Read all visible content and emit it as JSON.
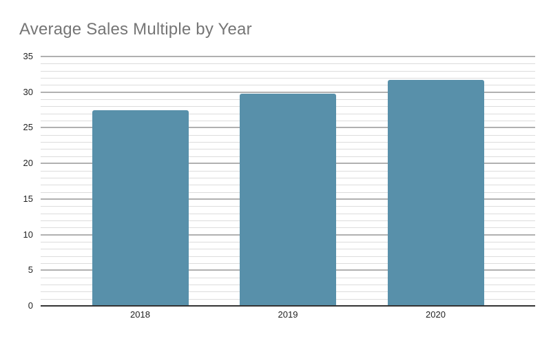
{
  "chart_data": {
    "type": "bar",
    "title": "Average Sales Multiple by Year",
    "xlabel": "",
    "ylabel": "",
    "categories": [
      "2018",
      "2019",
      "2020"
    ],
    "values": [
      27.5,
      29.8,
      31.7
    ],
    "ylim": [
      0,
      35
    ],
    "major_step": 5,
    "minor_step": 1,
    "y_tick_labels": [
      "0",
      "5",
      "10",
      "15",
      "20",
      "25",
      "30",
      "35"
    ],
    "grid": "major and minor horizontal gridlines on",
    "legend": "none",
    "colors": {
      "bar_fill": "#5890AA",
      "major_gridline": "#b0b0b0",
      "minor_gridline": "#dcdcdc",
      "axis_baseline": "#333333",
      "axis_text": "#222222",
      "title_text": "#757575",
      "background": "#ffffff"
    }
  }
}
